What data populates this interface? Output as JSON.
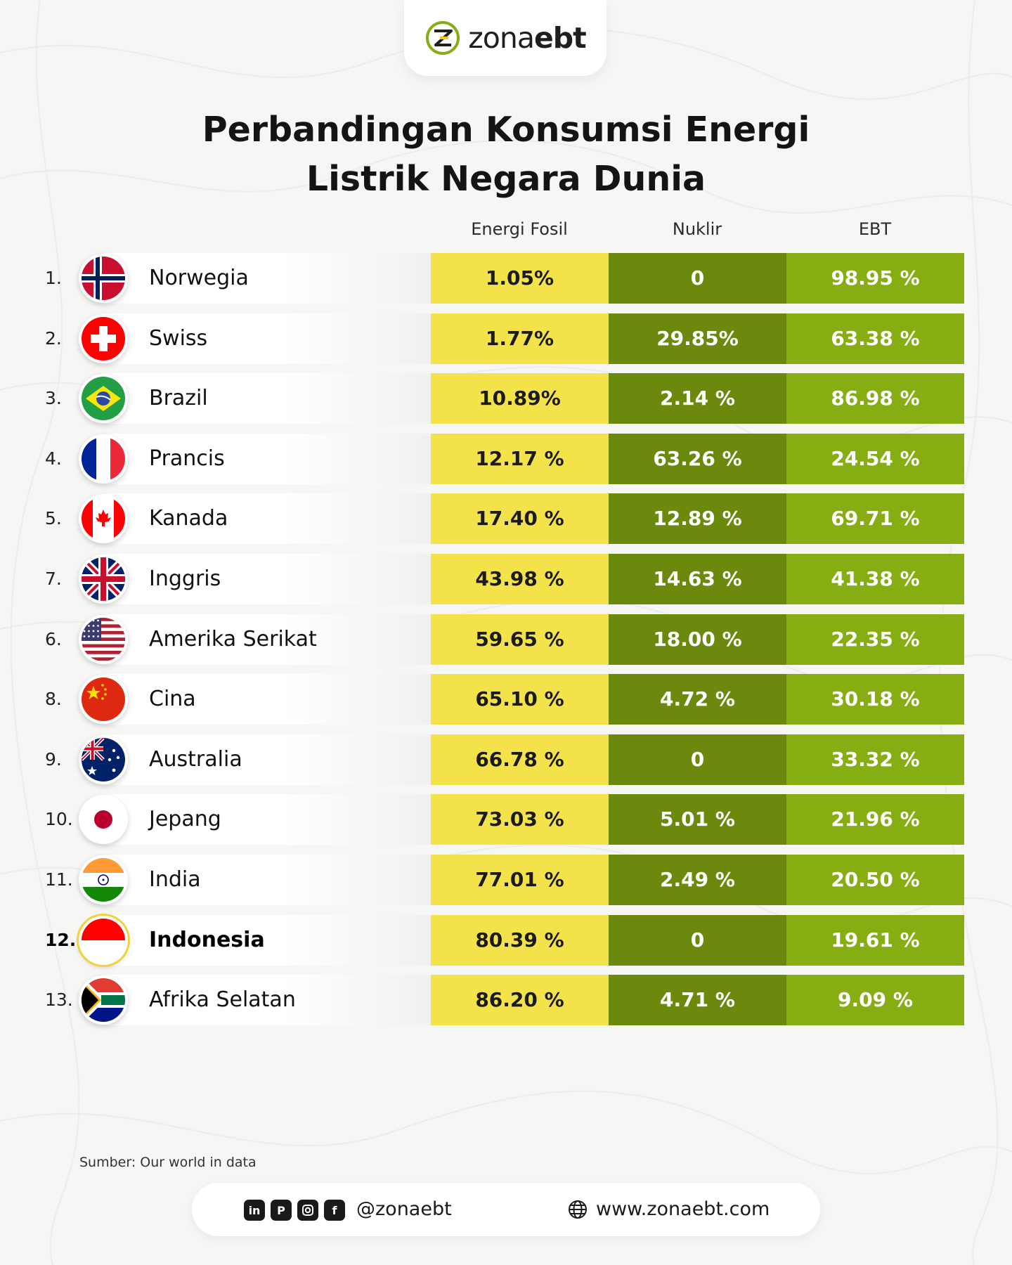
{
  "brand": {
    "logo_part1": "zona",
    "logo_part2": "ebt"
  },
  "title_line1": "Perbandingan Konsumsi Energi",
  "title_line2": "Listrik Negara Dunia",
  "columns": {
    "fossil": "Energi Fosil",
    "nuclear": "Nuklir",
    "ebt": "EBT"
  },
  "rows": [
    {
      "rank": "1.",
      "country": "Norwegia",
      "flag": "norway-flag-icon",
      "fossil": "1.05%",
      "nuclear": "0",
      "ebt": "98.95 %"
    },
    {
      "rank": "2.",
      "country": "Swiss",
      "flag": "switzerland-flag-icon",
      "fossil": "1.77%",
      "nuclear": "29.85%",
      "ebt": "63.38 %"
    },
    {
      "rank": "3.",
      "country": "Brazil",
      "flag": "brazil-flag-icon",
      "fossil": "10.89%",
      "nuclear": "2.14 %",
      "ebt": "86.98 %"
    },
    {
      "rank": "4.",
      "country": "Prancis",
      "flag": "france-flag-icon",
      "fossil": "12.17 %",
      "nuclear": "63.26 %",
      "ebt": "24.54 %"
    },
    {
      "rank": "5.",
      "country": "Kanada",
      "flag": "canada-flag-icon",
      "fossil": "17.40 %",
      "nuclear": "12.89 %",
      "ebt": "69.71 %"
    },
    {
      "rank": "7.",
      "country": "Inggris",
      "flag": "uk-flag-icon",
      "fossil": "43.98 %",
      "nuclear": "14.63 %",
      "ebt": "41.38 %"
    },
    {
      "rank": "6.",
      "country": "Amerika Serikat",
      "flag": "usa-flag-icon",
      "fossil": "59.65 %",
      "nuclear": "18.00 %",
      "ebt": "22.35 %"
    },
    {
      "rank": "8.",
      "country": "Cina",
      "flag": "china-flag-icon",
      "fossil": "65.10 %",
      "nuclear": "4.72 %",
      "ebt": "30.18 %"
    },
    {
      "rank": "9.",
      "country": "Australia",
      "flag": "australia-flag-icon",
      "fossil": "66.78 %",
      "nuclear": "0",
      "ebt": "33.32 %"
    },
    {
      "rank": "10.",
      "country": "Jepang",
      "flag": "japan-flag-icon",
      "fossil": "73.03 %",
      "nuclear": "5.01 %",
      "ebt": "21.96 %"
    },
    {
      "rank": "11.",
      "country": "India",
      "flag": "india-flag-icon",
      "fossil": "77.01 %",
      "nuclear": "2.49 %",
      "ebt": "20.50 %"
    },
    {
      "rank": "12.",
      "country": "Indonesia",
      "flag": "indonesia-flag-icon",
      "fossil": "80.39 %",
      "nuclear": "0",
      "ebt": "19.61 %",
      "highlight": true
    },
    {
      "rank": "13.",
      "country": "Afrika Selatan",
      "flag": "south-africa-flag-icon",
      "fossil": "86.20 %",
      "nuclear": "4.71 %",
      "ebt": "9.09 %"
    }
  ],
  "source": "Sumber: Our world in data",
  "footer": {
    "social_icons": [
      "linkedin-icon",
      "pinterest-icon",
      "instagram-icon",
      "facebook-icon"
    ],
    "handle": "@zonaebt",
    "website": "www.zonaebt.com"
  },
  "colors": {
    "fossil": "#f4e24a",
    "nuclear": "#6b8a0d",
    "ebt": "#86ad12"
  }
}
